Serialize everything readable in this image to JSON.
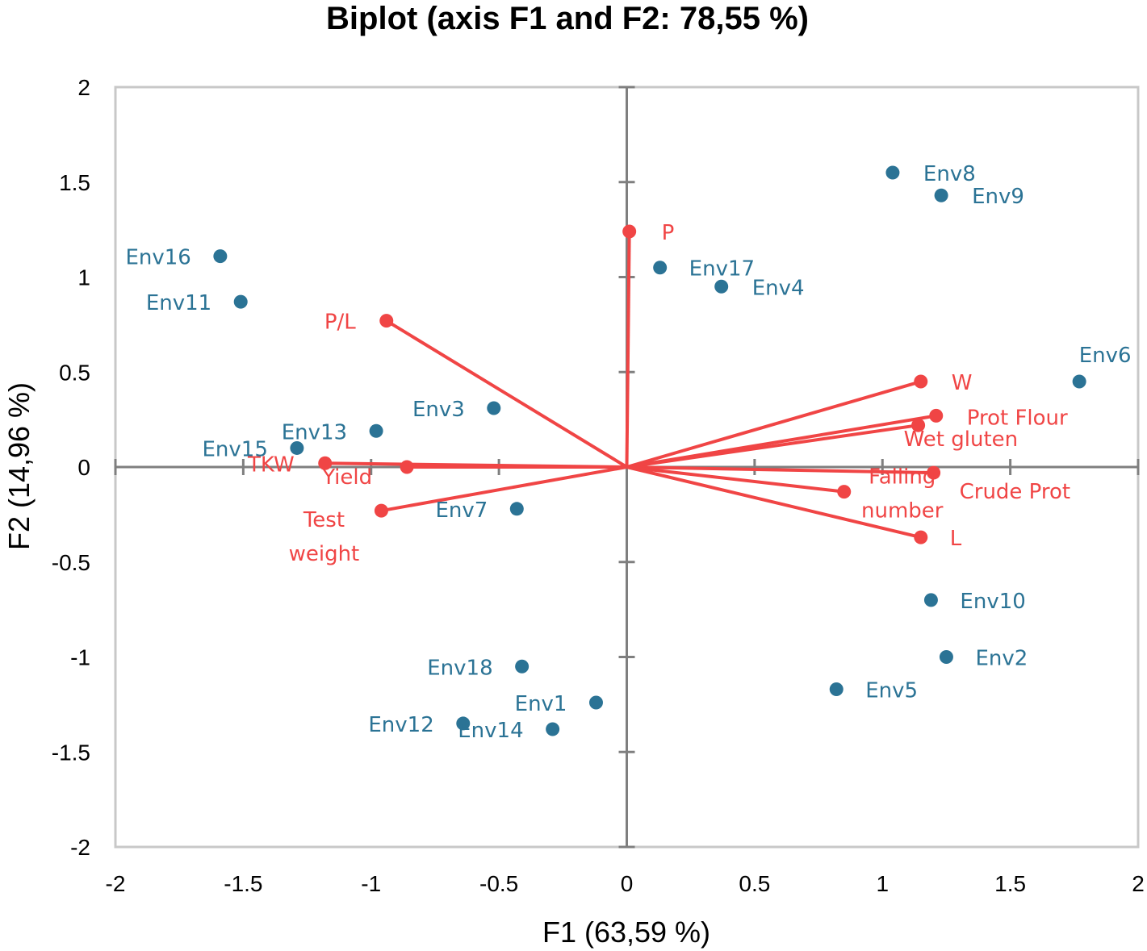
{
  "chart_data": {
    "type": "scatter",
    "subtype": "biplot",
    "title": "Biplot (axis F1 and F2: 78,55 %)",
    "xlabel": "F1 (63,59 %)",
    "ylabel": "F2 (14,96 %)",
    "xlim": [
      -2,
      2
    ],
    "ylim": [
      -2,
      2
    ],
    "x_ticks": [
      -2,
      -1.5,
      -1,
      -0.5,
      0,
      0.5,
      1,
      1.5,
      2
    ],
    "y_ticks": [
      -2,
      -1.5,
      -1,
      -0.5,
      0,
      0.5,
      1,
      1.5,
      2
    ],
    "x_tick_labels": [
      "-2",
      "-1.5",
      "-1",
      "-0.5",
      "0",
      "0.5",
      "1",
      "1.5",
      "2"
    ],
    "y_tick_labels": [
      "-2",
      "-1.5",
      "-1",
      "-0.5",
      "0",
      "0.5",
      "1",
      "1.5",
      "2"
    ],
    "colors": {
      "observations": "#2b7395",
      "variables": "#f04545",
      "axes": "#7f7f7f",
      "frame": "#c8c8c8"
    },
    "observations": [
      {
        "name": "Env8",
        "x": 1.04,
        "y": 1.55
      },
      {
        "name": "Env9",
        "x": 1.23,
        "y": 1.43
      },
      {
        "name": "Env16",
        "x": -1.59,
        "y": 1.11
      },
      {
        "name": "Env11",
        "x": -1.51,
        "y": 0.87
      },
      {
        "name": "Env17",
        "x": 0.13,
        "y": 1.05
      },
      {
        "name": "Env4",
        "x": 0.37,
        "y": 0.95
      },
      {
        "name": "Env6",
        "x": 1.77,
        "y": 0.45
      },
      {
        "name": "Env3",
        "x": -0.52,
        "y": 0.31
      },
      {
        "name": "Env13",
        "x": -0.98,
        "y": 0.19
      },
      {
        "name": "Env15",
        "x": -1.29,
        "y": 0.1
      },
      {
        "name": "Env7",
        "x": -0.43,
        "y": -0.22
      },
      {
        "name": "Env10",
        "x": 1.19,
        "y": -0.7
      },
      {
        "name": "Env2",
        "x": 1.25,
        "y": -1.0
      },
      {
        "name": "Env5",
        "x": 0.82,
        "y": -1.17
      },
      {
        "name": "Env18",
        "x": -0.41,
        "y": -1.05
      },
      {
        "name": "Env1",
        "x": -0.12,
        "y": -1.24
      },
      {
        "name": "Env12",
        "x": -0.64,
        "y": -1.35
      },
      {
        "name": "Env14",
        "x": -0.29,
        "y": -1.38
      }
    ],
    "variables": [
      {
        "name": "P",
        "x": 0.01,
        "y": 1.24
      },
      {
        "name": "P/L",
        "x": -0.94,
        "y": 0.77
      },
      {
        "name": "W",
        "x": 1.15,
        "y": 0.45
      },
      {
        "name": "Prot Flour",
        "x": 1.21,
        "y": 0.27
      },
      {
        "name": "Wet gluten",
        "x": 1.14,
        "y": 0.22
      },
      {
        "name": "Crude Prot",
        "x": 1.2,
        "y": -0.03
      },
      {
        "name": "Falling number",
        "x": 0.85,
        "y": -0.13
      },
      {
        "name": "L",
        "x": 1.15,
        "y": -0.37
      },
      {
        "name": "TKW",
        "x": -1.18,
        "y": 0.02
      },
      {
        "name": "Yield",
        "x": -0.86,
        "y": 0.0
      },
      {
        "name": "Test weight",
        "x": -0.96,
        "y": -0.23
      }
    ]
  }
}
